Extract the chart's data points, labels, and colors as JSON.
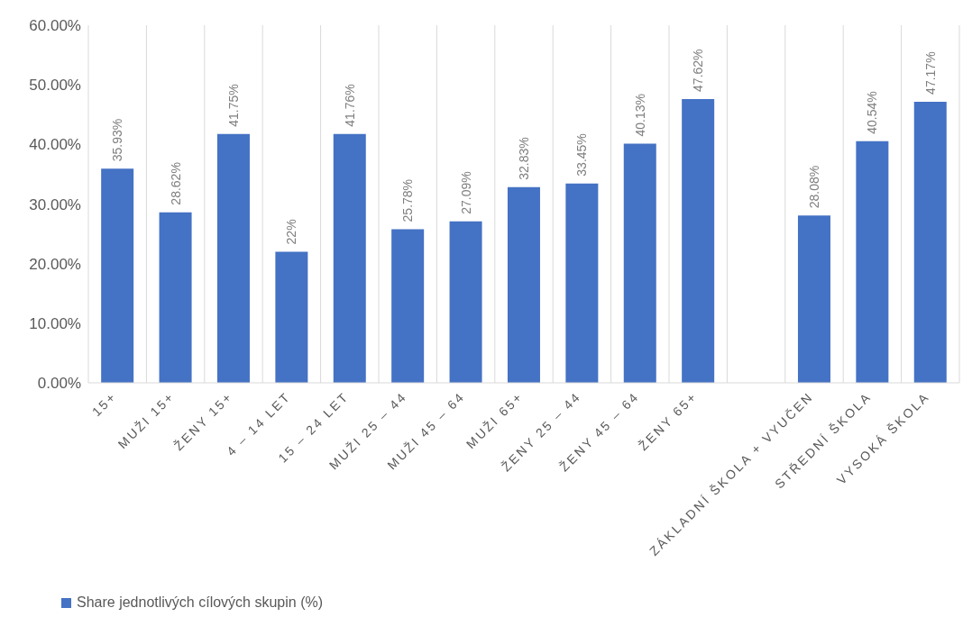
{
  "chart_data": {
    "type": "bar",
    "categories": [
      "15+",
      "MUŽI 15+",
      "ŽENY 15+",
      "4 – 14 LET",
      "15 – 24 LET",
      "MUŽI 25 – 44",
      "MUŽI 45 – 64",
      "MUŽI 65+",
      "ŽENY 25 – 44",
      "ŽENY 45 – 64",
      "ŽENY 65+",
      null,
      "ZÁKLADNÍ ŠKOLA + VYUČEN",
      "STŘEDNÍ ŠKOLA",
      "VYSOKÁ ŠKOLA"
    ],
    "series": [
      {
        "name": "Share jednotlivých cílových skupin (%)",
        "color": "#4472c4",
        "values": [
          35.93,
          28.62,
          41.75,
          22,
          41.76,
          25.78,
          27.09,
          32.83,
          33.45,
          40.13,
          47.62,
          null,
          28.08,
          40.54,
          47.17
        ],
        "value_labels": [
          "35.93%",
          "28.62%",
          "41.75%",
          "22%",
          "41.76%",
          "25.78%",
          "27.09%",
          "32.83%",
          "33.45%",
          "40.13%",
          "47.62%",
          null,
          "28.08%",
          "40.54%",
          "47.17%"
        ]
      }
    ],
    "ylim": [
      0,
      60
    ],
    "yticks": [
      {
        "value": 0,
        "label": "0.00%"
      },
      {
        "value": 10,
        "label": "10.00%"
      },
      {
        "value": 20,
        "label": "20.00%"
      },
      {
        "value": 30,
        "label": "30.00%"
      },
      {
        "value": 40,
        "label": "40.00%"
      },
      {
        "value": 50,
        "label": "50.00%"
      },
      {
        "value": 60,
        "label": "60.00%"
      }
    ],
    "grid": "x",
    "legend": "bottom left"
  }
}
